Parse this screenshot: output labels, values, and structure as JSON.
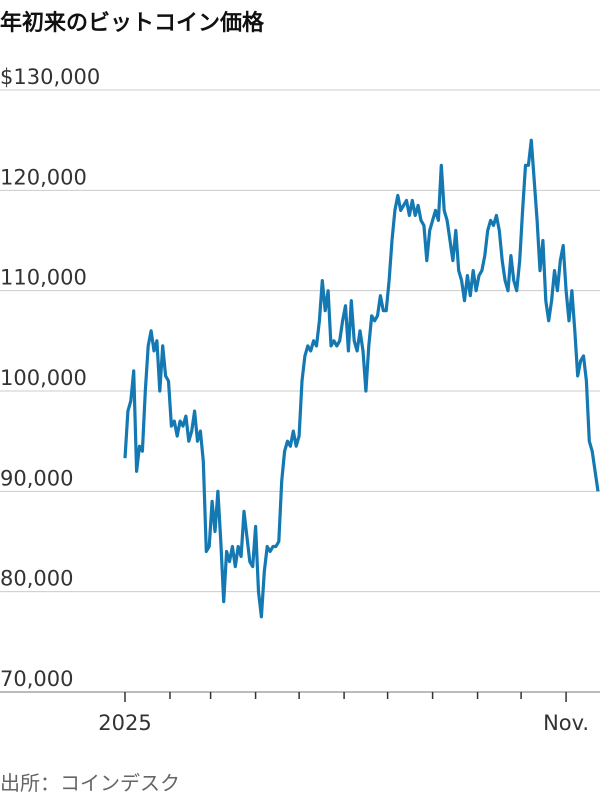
{
  "chart_data": {
    "type": "line",
    "title": "年初来のビットコイン価格",
    "source": "出所：コインデスク",
    "series": [
      {
        "name": "ビットコイン",
        "color": "#1479b3",
        "values": [
          93.3,
          98,
          99,
          102,
          92,
          94.5,
          94,
          100,
          104.5,
          106,
          104,
          105,
          100,
          104.5,
          101.5,
          101,
          96.5,
          97,
          95.5,
          97,
          96.5,
          97.5,
          95,
          96,
          98,
          95,
          96,
          93,
          84,
          84.5,
          89,
          86,
          90,
          85,
          79,
          84,
          83,
          84.5,
          82.5,
          84.5,
          83.5,
          88,
          85.5,
          83,
          82.5,
          86.5,
          80,
          77.5,
          82,
          84.5,
          84,
          84.5,
          84.5,
          85,
          91,
          94,
          95,
          94.5,
          96,
          94.5,
          95.5,
          101,
          103.5,
          104.5,
          104,
          105,
          104.5,
          107,
          111,
          108,
          110,
          104.5,
          105,
          104.5,
          105,
          107,
          108.5,
          104,
          109,
          105,
          104,
          106,
          104,
          100,
          104.5,
          107.5,
          107,
          107.5,
          109.5,
          108,
          108,
          111,
          115,
          118,
          119.5,
          118,
          118.5,
          119,
          117.5,
          119,
          117.5,
          118.5,
          117,
          116.5,
          113,
          116,
          117,
          118,
          117,
          122.5,
          118,
          117,
          115,
          113,
          116,
          112,
          111,
          109,
          111.5,
          109.5,
          112,
          110,
          111.5,
          112,
          113.5,
          116,
          117,
          116.5,
          117.5,
          116,
          113,
          111,
          110,
          113.5,
          111,
          110,
          113,
          118,
          122.5,
          122.5,
          125,
          121,
          117,
          112,
          115,
          109,
          107,
          109,
          112,
          110,
          113,
          114.5,
          110,
          107,
          110,
          106,
          101.5,
          103,
          103.5,
          101,
          95,
          94,
          92,
          90
        ]
      }
    ],
    "value_scale": 1000,
    "xlim": [
      0,
      163
    ],
    "xticks": [
      {
        "value": 0,
        "label": "2025"
      },
      {
        "value": 152,
        "label": "Nov."
      }
    ],
    "xminor_ticks": [
      15.5,
      29.5,
      45,
      60,
      75.5,
      90.5,
      106,
      121.5,
      136.5
    ],
    "ylim": [
      70,
      130
    ],
    "yticks": [
      {
        "value": 130,
        "label": "$130,000"
      },
      {
        "value": 120,
        "label": "120,000"
      },
      {
        "value": 110,
        "label": "110,000"
      },
      {
        "value": 100,
        "label": "100,000"
      },
      {
        "value": 90,
        "label": "90,000"
      },
      {
        "value": 80,
        "label": "80,000"
      },
      {
        "value": 70,
        "label": "70,000"
      }
    ],
    "grid": true
  }
}
